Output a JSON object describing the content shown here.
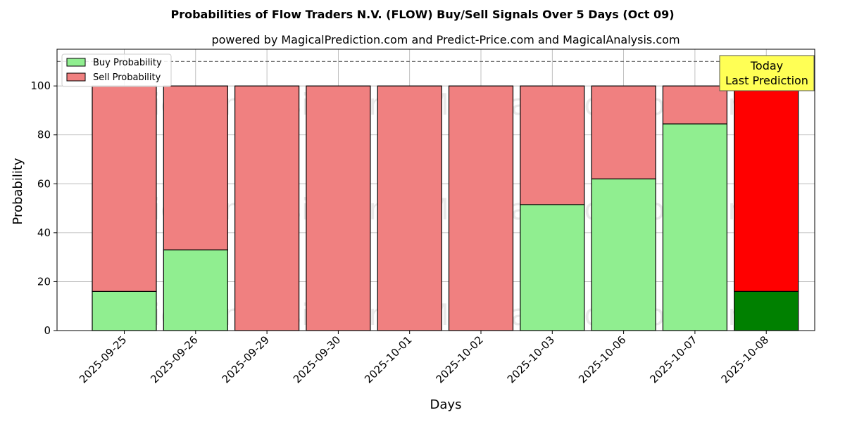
{
  "chart_data": {
    "type": "bar",
    "stacked": true,
    "title": "Probabilities of Flow Traders N.V. (FLOW) Buy/Sell Signals Over 5 Days (Oct 09)",
    "subtitle": "powered by MagicalPrediction.com and Predict-Price.com and MagicalAnalysis.com",
    "xlabel": "Days",
    "ylabel": "Probability",
    "ylim": [
      0,
      115
    ],
    "yticks": [
      0,
      20,
      40,
      60,
      80,
      100
    ],
    "grid": true,
    "legend_position": "top-left",
    "reference_line": 110,
    "categories": [
      "2025-09-25",
      "2025-09-26",
      "2025-09-29",
      "2025-09-30",
      "2025-10-01",
      "2025-10-02",
      "2025-10-03",
      "2025-10-06",
      "2025-10-07",
      "2025-10-08"
    ],
    "series": [
      {
        "name": "Buy Probability",
        "color": "#90ee90",
        "highlight_color": "#008000",
        "values": [
          16,
          33,
          0,
          0,
          0,
          0,
          51.5,
          62,
          84.5,
          16
        ]
      },
      {
        "name": "Sell Probability",
        "color": "#f08080",
        "highlight_color": "#ff0000",
        "values": [
          84,
          67,
          100,
          100,
          100,
          100,
          48.5,
          38,
          15.5,
          84
        ]
      }
    ],
    "highlight_index": 9,
    "annotation": {
      "lines": [
        "Today",
        "Last Prediction"
      ],
      "background": "#ffff55"
    },
    "watermarks": [
      "MagicalAnalysis.com",
      "MagicalPrediction.com"
    ]
  }
}
